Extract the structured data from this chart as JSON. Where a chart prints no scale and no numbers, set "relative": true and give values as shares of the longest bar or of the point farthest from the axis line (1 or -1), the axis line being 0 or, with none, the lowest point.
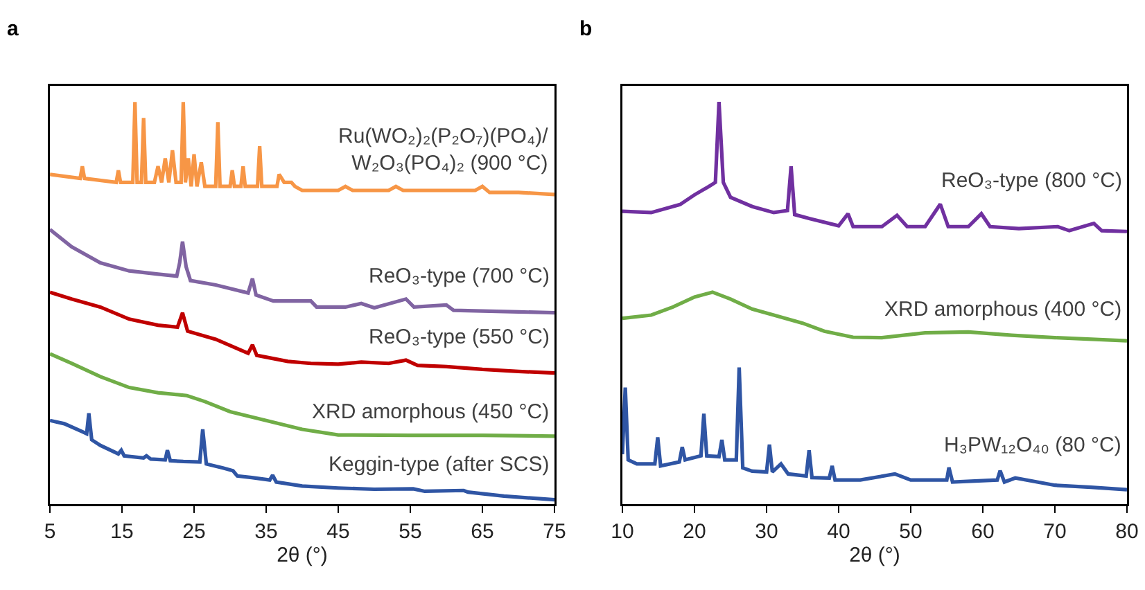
{
  "chart_data": [
    {
      "type": "line",
      "title": "a",
      "xlabel": "2θ (°)",
      "xlim": [
        5,
        75
      ],
      "xticks": [
        5,
        15,
        25,
        35,
        45,
        55,
        65,
        75
      ],
      "relative": true,
      "series": [
        {
          "name": "Ru(WO₂)₂(P₂O₇)(PO₄)/\nW₂O₃(PO₄)₂ (900 °C)",
          "color": "#f79646",
          "x": [
            5,
            9.2,
            9.5,
            9.8,
            14.2,
            14.5,
            14.8,
            16.5,
            16.8,
            17.1,
            17.7,
            18.0,
            18.3,
            19.5,
            20.0,
            20.5,
            21.0,
            21.5,
            22.0,
            22.5,
            23.0,
            23.2,
            23.5,
            23.8,
            24.2,
            24.6,
            25.0,
            25.4,
            26.0,
            26.5,
            28.0,
            28.3,
            28.6,
            30.0,
            30.3,
            30.6,
            31.5,
            31.8,
            32.1,
            33.8,
            34.1,
            34.4,
            36.5,
            36.8,
            37.5,
            38.5,
            39,
            40,
            45,
            46,
            47,
            52,
            53,
            54,
            60,
            64,
            65,
            66,
            70,
            75
          ],
          "values": [
            0.82,
            0.81,
            0.84,
            0.81,
            0.8,
            0.83,
            0.8,
            0.8,
            1.0,
            0.8,
            0.8,
            0.96,
            0.8,
            0.8,
            0.84,
            0.8,
            0.86,
            0.8,
            0.88,
            0.8,
            0.8,
            0.8,
            1.0,
            0.8,
            0.86,
            0.79,
            0.87,
            0.79,
            0.85,
            0.79,
            0.79,
            0.95,
            0.79,
            0.79,
            0.83,
            0.79,
            0.79,
            0.84,
            0.79,
            0.79,
            0.89,
            0.79,
            0.79,
            0.82,
            0.8,
            0.8,
            0.79,
            0.78,
            0.78,
            0.79,
            0.78,
            0.78,
            0.79,
            0.78,
            0.78,
            0.78,
            0.79,
            0.775,
            0.775,
            0.77
          ]
        },
        {
          "name": "ReO₃-type (700 °C)",
          "color": "#8064a2",
          "x": [
            5,
            8,
            12,
            16,
            20,
            22.6,
            23.0,
            23.4,
            23.9,
            24.5,
            28,
            32.5,
            33.1,
            33.6,
            36,
            41.2,
            42,
            46,
            48.2,
            50,
            54.4,
            55.5,
            60,
            61,
            70,
            75
          ],
          "values": [
            0.683,
            0.64,
            0.6,
            0.58,
            0.572,
            0.567,
            0.6,
            0.653,
            0.59,
            0.556,
            0.545,
            0.525,
            0.561,
            0.52,
            0.505,
            0.505,
            0.49,
            0.49,
            0.499,
            0.488,
            0.51,
            0.49,
            0.495,
            0.482,
            0.478,
            0.476
          ]
        },
        {
          "name": "ReO₃-type (550 °C)",
          "color": "#c00000",
          "x": [
            5,
            8,
            12,
            16,
            20,
            22.7,
            23.4,
            24.1,
            28,
            32.5,
            33.1,
            33.7,
            38,
            41.2,
            45,
            48.2,
            52,
            54.4,
            56,
            60,
            65,
            70,
            75
          ],
          "values": [
            0.527,
            0.51,
            0.49,
            0.46,
            0.445,
            0.44,
            0.476,
            0.43,
            0.41,
            0.375,
            0.396,
            0.37,
            0.355,
            0.35,
            0.348,
            0.353,
            0.35,
            0.358,
            0.345,
            0.342,
            0.335,
            0.33,
            0.326
          ]
        },
        {
          "name": "XRD amorphous (450 °C)",
          "color": "#70ad47",
          "x": [
            5,
            8,
            12,
            16,
            20,
            24,
            26.5,
            30,
            35,
            40,
            45,
            55,
            65,
            75
          ],
          "values": [
            0.374,
            0.35,
            0.317,
            0.29,
            0.277,
            0.27,
            0.255,
            0.23,
            0.208,
            0.186,
            0.172,
            0.171,
            0.171,
            0.169
          ]
        },
        {
          "name": "Keggin-type (after SCS)",
          "color": "#2f55a4",
          "x": [
            5,
            7,
            9.5,
            10.1,
            10.4,
            10.8,
            12,
            14.5,
            14.9,
            15.3,
            18,
            18.4,
            19,
            21,
            21.3,
            21.7,
            23.5,
            25.8,
            26.2,
            26.7,
            29,
            30.4,
            31,
            33,
            35.5,
            35.9,
            36.4,
            40,
            45,
            50,
            55.4,
            57,
            62.4,
            63,
            68,
            75
          ],
          "values": [
            0.208,
            0.2,
            0.18,
            0.175,
            0.226,
            0.16,
            0.146,
            0.125,
            0.134,
            0.12,
            0.115,
            0.12,
            0.112,
            0.11,
            0.134,
            0.108,
            0.106,
            0.105,
            0.186,
            0.1,
            0.09,
            0.083,
            0.07,
            0.066,
            0.06,
            0.072,
            0.055,
            0.045,
            0.04,
            0.037,
            0.038,
            0.032,
            0.034,
            0.03,
            0.02,
            0.011
          ]
        }
      ]
    },
    {
      "type": "line",
      "title": "b",
      "xlabel": "2θ (°)",
      "xlim": [
        10,
        80
      ],
      "xticks": [
        10,
        20,
        30,
        40,
        50,
        60,
        70,
        80
      ],
      "relative": true,
      "series": [
        {
          "name": "ReO₃-type (800 °C)",
          "color": "#7030a0",
          "x": [
            10,
            14,
            18,
            20,
            22,
            22.9,
            23.4,
            24.0,
            25,
            28,
            31,
            32.9,
            33.4,
            33.9,
            36,
            40,
            41.3,
            42,
            46,
            48.1,
            49.5,
            52,
            54.1,
            55.2,
            58,
            59.8,
            61,
            65,
            70.4,
            72,
            75.4,
            76.5,
            80
          ],
          "values": [
            0.728,
            0.725,
            0.745,
            0.769,
            0.79,
            0.8,
            1.0,
            0.8,
            0.763,
            0.74,
            0.725,
            0.73,
            0.84,
            0.72,
            0.71,
            0.692,
            0.722,
            0.69,
            0.69,
            0.718,
            0.69,
            0.69,
            0.746,
            0.69,
            0.69,
            0.722,
            0.69,
            0.685,
            0.69,
            0.68,
            0.698,
            0.68,
            0.678
          ]
        },
        {
          "name": "XRD amorphous (400 °C)",
          "color": "#70ad47",
          "x": [
            10,
            14,
            17,
            20,
            22.5,
            25,
            28,
            31,
            35,
            38,
            42,
            46,
            52,
            58,
            64,
            70,
            80
          ],
          "values": [
            0.462,
            0.47,
            0.49,
            0.515,
            0.527,
            0.51,
            0.485,
            0.47,
            0.45,
            0.43,
            0.415,
            0.414,
            0.426,
            0.428,
            0.42,
            0.414,
            0.406
          ]
        },
        {
          "name": "H₃PW₁₂O₄₀ (80 °C)",
          "color": "#2f55a4",
          "x": [
            10,
            10.4,
            10.8,
            12,
            14.5,
            14.9,
            15.3,
            17.9,
            18.3,
            18.7,
            20.9,
            21.3,
            21.7,
            23.4,
            23.8,
            24.2,
            25.8,
            26.2,
            26.7,
            28,
            30,
            30.4,
            30.8,
            32,
            33,
            35.5,
            35.9,
            36.3,
            38.7,
            39.1,
            39.5,
            43,
            47.8,
            50,
            55,
            55.3,
            55.8,
            62,
            62.4,
            63,
            64.5,
            70,
            75,
            80
          ],
          "values": [
            0.124,
            0.29,
            0.11,
            0.1,
            0.1,
            0.166,
            0.095,
            0.105,
            0.142,
            0.11,
            0.12,
            0.225,
            0.12,
            0.118,
            0.16,
            0.11,
            0.11,
            0.34,
            0.09,
            0.082,
            0.08,
            0.148,
            0.08,
            0.1,
            0.075,
            0.07,
            0.134,
            0.066,
            0.065,
            0.095,
            0.06,
            0.06,
            0.075,
            0.06,
            0.06,
            0.091,
            0.055,
            0.06,
            0.083,
            0.055,
            0.065,
            0.047,
            0.042,
            0.036
          ]
        }
      ]
    }
  ]
}
